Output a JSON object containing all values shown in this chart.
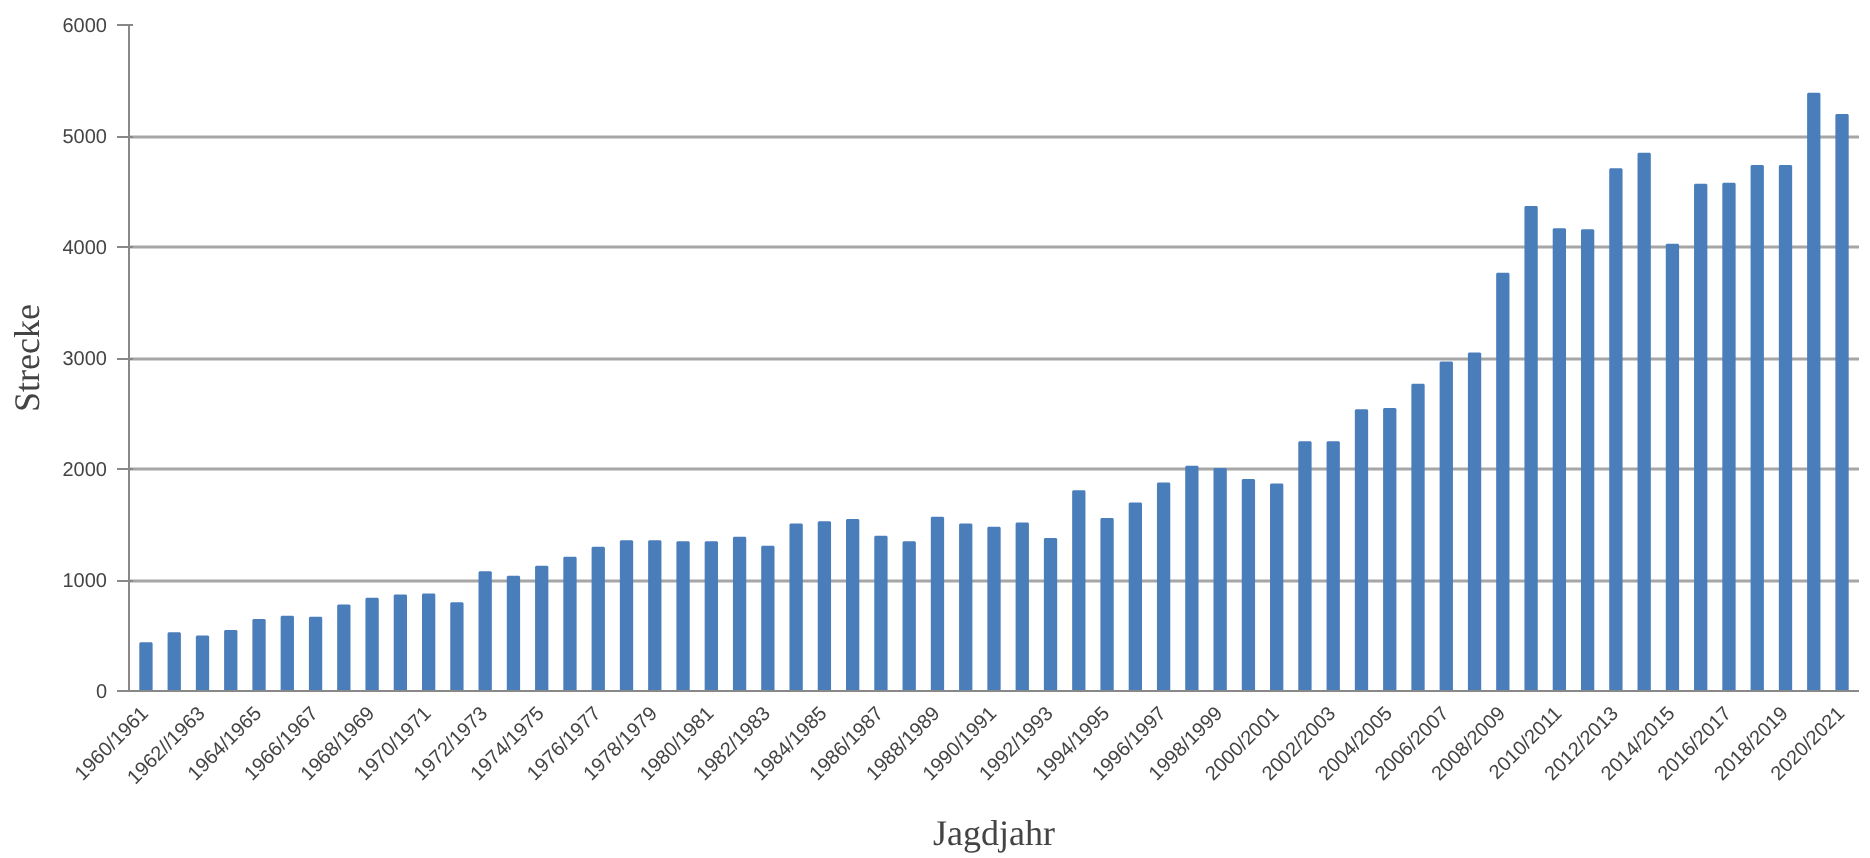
{
  "chart_data": {
    "type": "bar",
    "xlabel": "Jagdjahr",
    "ylabel": "Strecke",
    "categories": [
      "1960/1961",
      null,
      "1962//1963",
      null,
      "1964/1965",
      null,
      "1966/1967",
      null,
      "1968/1969",
      null,
      "1970/1971",
      null,
      "1972/1973",
      null,
      "1974/1975",
      null,
      "1976/1977",
      null,
      "1978/1979",
      null,
      "1980/1981",
      null,
      "1982/1983",
      null,
      "1984/1985",
      null,
      "1986/1987",
      null,
      "1988/1989",
      null,
      "1990/1991",
      null,
      "1992/1993",
      null,
      "1994/1995",
      null,
      "1996/1997",
      null,
      "1998/1999",
      null,
      "2000/2001",
      null,
      "2002/2003",
      null,
      "2004/2005",
      null,
      "2006/2007",
      null,
      "2008/2009",
      null,
      "2010/2011",
      null,
      "2012/2013",
      null,
      "2014/2015",
      null,
      "2016/2017",
      null,
      "2018/2019",
      null,
      "2020/2021"
    ],
    "values": [
      430,
      520,
      490,
      540,
      640,
      670,
      660,
      770,
      830,
      860,
      870,
      790,
      1070,
      1030,
      1120,
      1200,
      1290,
      1350,
      1350,
      1340,
      1340,
      1380,
      1300,
      1500,
      1520,
      1540,
      1390,
      1340,
      1560,
      1500,
      1470,
      1510,
      1370,
      1800,
      1550,
      1690,
      1870,
      2020,
      2000,
      1900,
      1860,
      2240,
      2240,
      2530,
      2540,
      2760,
      2960,
      3040,
      3760,
      4360,
      4160,
      4150,
      4700,
      4840,
      4020,
      4560,
      4570,
      4730,
      4730,
      5380,
      5190
    ],
    "color": "#4a7ebb",
    "ylim": [
      0,
      6000
    ],
    "yticks": [
      0,
      1000,
      2000,
      3000,
      4000,
      5000,
      6000
    ],
    "grid": "y"
  }
}
